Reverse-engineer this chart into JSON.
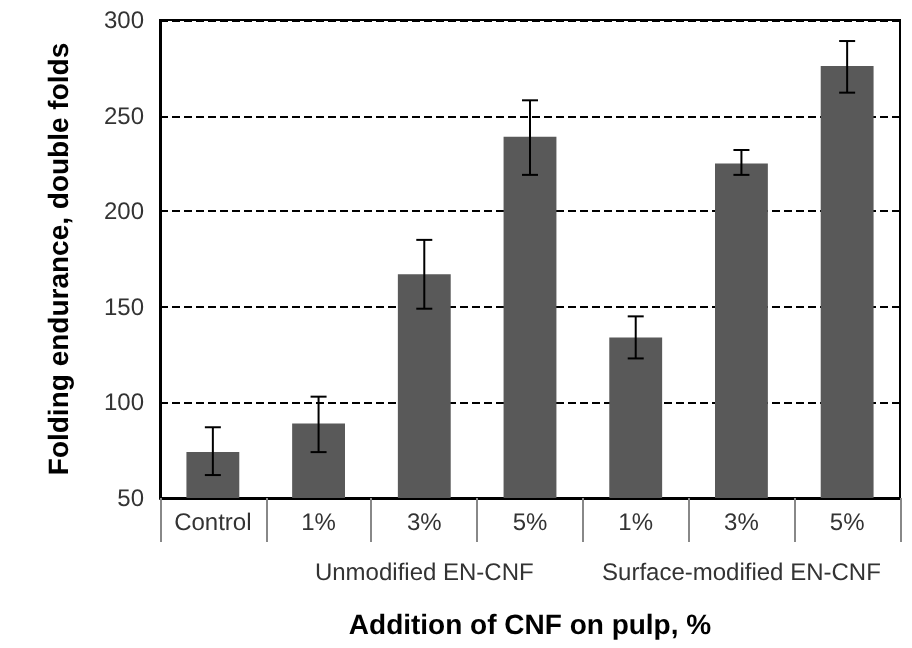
{
  "chart_data": {
    "type": "bar",
    "xlabel": "Addition of CNF on pulp, %",
    "ylabel": "Folding endurance, double folds",
    "categories": [
      "Control",
      "1%",
      "3%",
      "5%",
      "1%",
      "3%",
      "5%"
    ],
    "values": [
      74,
      89,
      167,
      239,
      134,
      225,
      276
    ],
    "errors": [
      [
        62,
        87
      ],
      [
        74,
        103
      ],
      [
        149,
        185
      ],
      [
        219,
        258
      ],
      [
        123,
        145
      ],
      [
        219,
        232
      ],
      [
        262,
        289
      ]
    ],
    "color": "#595959",
    "ylim": [
      50,
      300
    ],
    "yticks": [
      50,
      100,
      150,
      200,
      250,
      300
    ],
    "grid": "y",
    "annotations": [
      "Unmodified EN-CNF",
      "Surface-modified EN-CNF"
    ]
  }
}
